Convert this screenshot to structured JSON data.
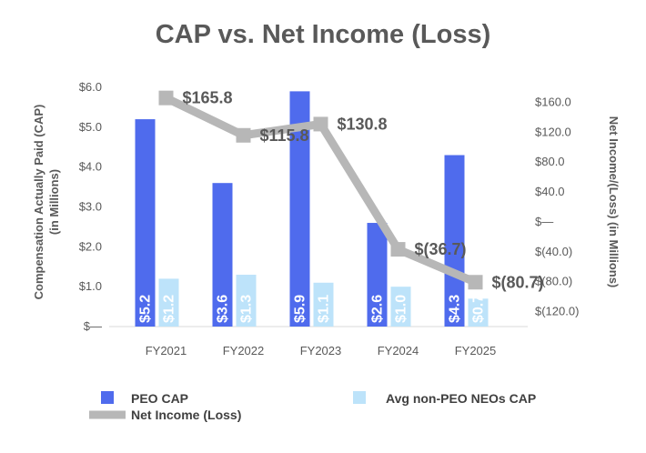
{
  "chart_data": {
    "type": "bar+line",
    "title": "CAP vs. Net Income (Loss)",
    "categories": [
      "FY2021",
      "FY2022",
      "FY2023",
      "FY2024",
      "FY2025"
    ],
    "left_axis": {
      "title_line1": "Compensation Actually Paid (CAP)",
      "title_line2": "(in Millions)",
      "range": [
        0,
        6
      ],
      "ticks": [
        {
          "value": 0,
          "label": "$—"
        },
        {
          "value": 1,
          "label": "$1.0"
        },
        {
          "value": 2,
          "label": "$2.0"
        },
        {
          "value": 3,
          "label": "$3.0"
        },
        {
          "value": 4,
          "label": "$4.0"
        },
        {
          "value": 5,
          "label": "$5.0"
        },
        {
          "value": 6,
          "label": "$6.0"
        }
      ]
    },
    "right_axis": {
      "title": "Net Income/(Loss) (in Millions)",
      "range": [
        -140,
        180
      ],
      "ticks": [
        {
          "value": 160,
          "label": "$160.0"
        },
        {
          "value": 120,
          "label": "$120.0"
        },
        {
          "value": 80,
          "label": "$80.0"
        },
        {
          "value": 40,
          "label": "$40.0"
        },
        {
          "value": 0,
          "label": "$—"
        },
        {
          "value": -40,
          "label": "$(40.0)"
        },
        {
          "value": -80,
          "label": "$(80.0)"
        },
        {
          "value": -120,
          "label": "$(120.0)"
        }
      ]
    },
    "series": [
      {
        "name": "PEO CAP",
        "type": "bar",
        "axis": "left",
        "color": "#4f6bed",
        "values": [
          5.2,
          3.6,
          5.9,
          2.6,
          4.3
        ],
        "labels": [
          "$5.2",
          "$3.6",
          "$5.9",
          "$2.6",
          "$4.3"
        ]
      },
      {
        "name": "Avg non-PEO NEOs CAP",
        "type": "bar",
        "axis": "left",
        "color": "#bde3fa",
        "values": [
          1.2,
          1.3,
          1.1,
          1.0,
          0.7
        ],
        "labels": [
          "$1.2",
          "$1.3",
          "$1.1",
          "$1.0",
          "$0.7"
        ]
      },
      {
        "name": "Net Income (Loss)",
        "type": "line",
        "axis": "right",
        "color": "#b7b7b7",
        "values": [
          165.8,
          115.8,
          130.8,
          -36.7,
          -80.7
        ],
        "labels": [
          "$165.8",
          "$115.8",
          "$130.8",
          "$(36.7)",
          "$(80.7)"
        ]
      }
    ],
    "legend": [
      "PEO CAP",
      "Avg non-PEO NEOs CAP",
      "Net Income (Loss)"
    ]
  }
}
